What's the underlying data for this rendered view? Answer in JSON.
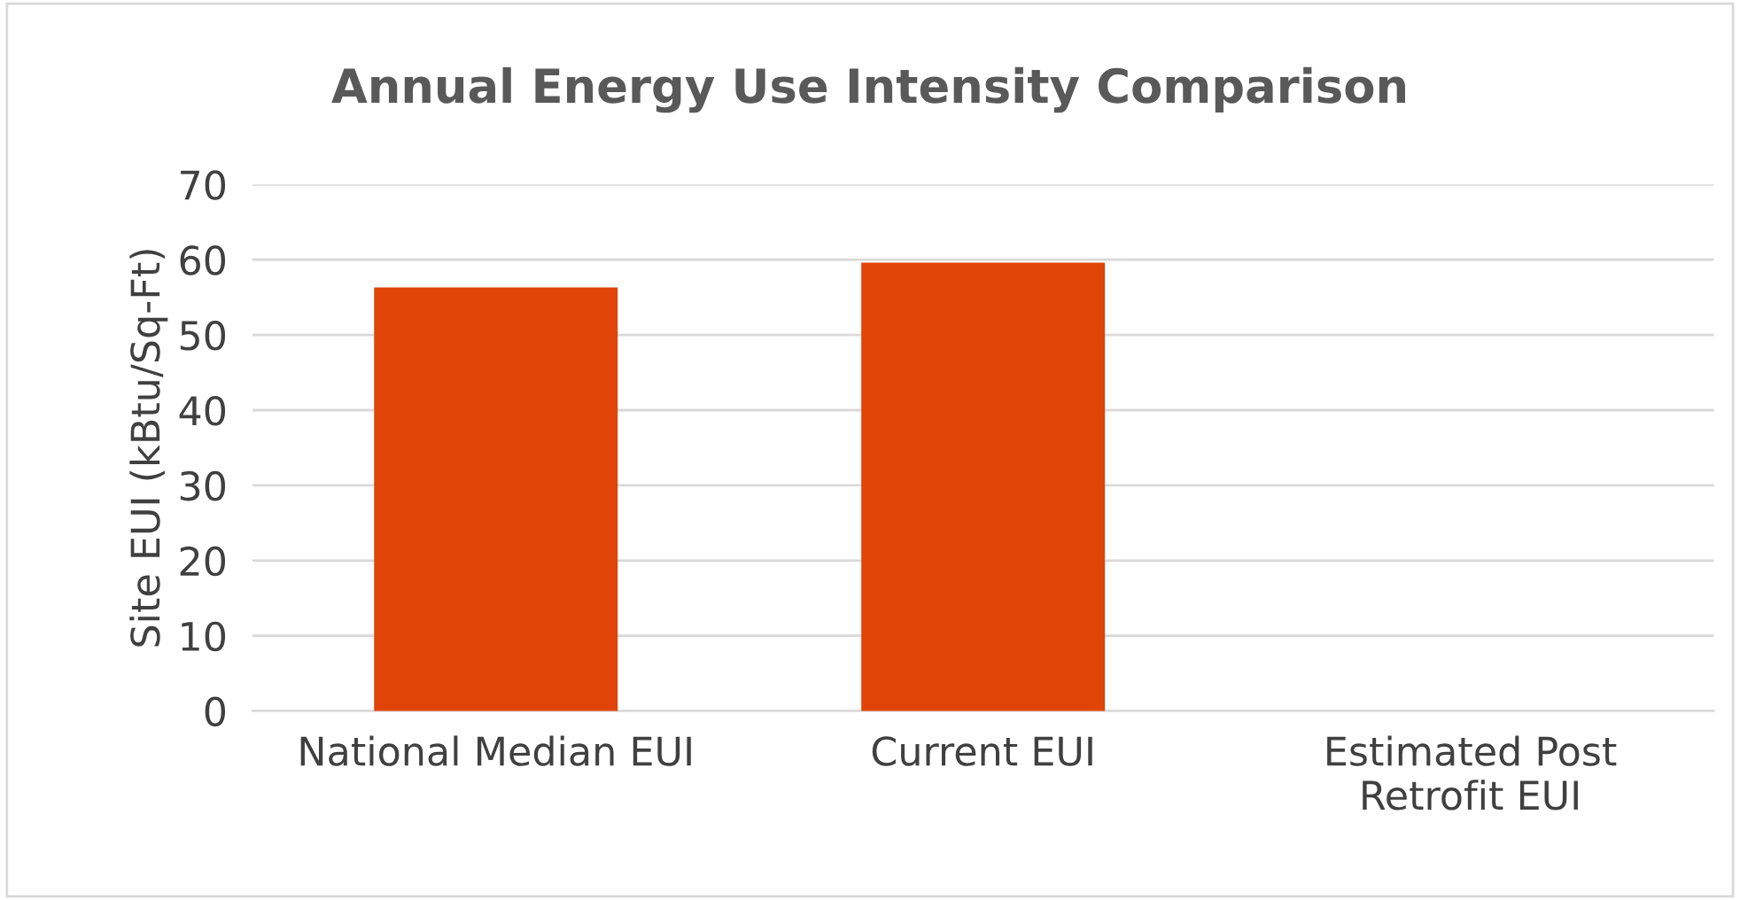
{
  "chart_data": {
    "type": "bar",
    "title": "Annual Energy Use Intensity Comparison",
    "ylabel": "Site EUI (kBtu/Sq-Ft)",
    "categories": [
      "National Median EUI",
      "Current EUI",
      "Estimated Post\nRetrofit EUI"
    ],
    "values": [
      56.3,
      59.6,
      0
    ],
    "color": "#e04406",
    "ylim": [
      0,
      70
    ],
    "yticks": [
      0,
      10,
      20,
      30,
      40,
      50,
      60,
      70
    ],
    "grid": "y"
  }
}
